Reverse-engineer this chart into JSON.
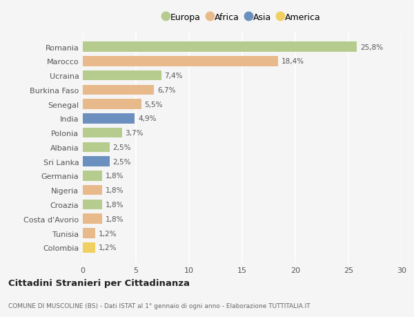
{
  "countries": [
    "Romania",
    "Marocco",
    "Ucraina",
    "Burkina Faso",
    "Senegal",
    "India",
    "Polonia",
    "Albania",
    "Sri Lanka",
    "Germania",
    "Nigeria",
    "Croazia",
    "Costa d'Avorio",
    "Tunisia",
    "Colombia"
  ],
  "values": [
    25.8,
    18.4,
    7.4,
    6.7,
    5.5,
    4.9,
    3.7,
    2.5,
    2.5,
    1.8,
    1.8,
    1.8,
    1.8,
    1.2,
    1.2
  ],
  "labels": [
    "25,8%",
    "18,4%",
    "7,4%",
    "6,7%",
    "5,5%",
    "4,9%",
    "3,7%",
    "2,5%",
    "2,5%",
    "1,8%",
    "1,8%",
    "1,8%",
    "1,8%",
    "1,2%",
    "1,2%"
  ],
  "continents": [
    "Europa",
    "Africa",
    "Europa",
    "Africa",
    "Africa",
    "Asia",
    "Europa",
    "Europa",
    "Asia",
    "Europa",
    "Africa",
    "Europa",
    "Africa",
    "Africa",
    "America"
  ],
  "continent_colors": {
    "Europa": "#b5cc8e",
    "Africa": "#e8b98a",
    "Asia": "#6b8fbf",
    "America": "#f0d060"
  },
  "legend_order": [
    "Europa",
    "Africa",
    "Asia",
    "America"
  ],
  "xlim": [
    0,
    30
  ],
  "xticks": [
    0,
    5,
    10,
    15,
    20,
    25,
    30
  ],
  "title": "Cittadini Stranieri per Cittadinanza",
  "subtitle": "COMUNE DI MUSCOLINE (BS) - Dati ISTAT al 1° gennaio di ogni anno - Elaborazione TUTTITALIA.IT",
  "bg_color": "#f5f5f5",
  "grid_color": "#ffffff",
  "bar_height": 0.7,
  "label_fontsize": 7.5,
  "ytick_fontsize": 8.0,
  "xtick_fontsize": 8.0
}
